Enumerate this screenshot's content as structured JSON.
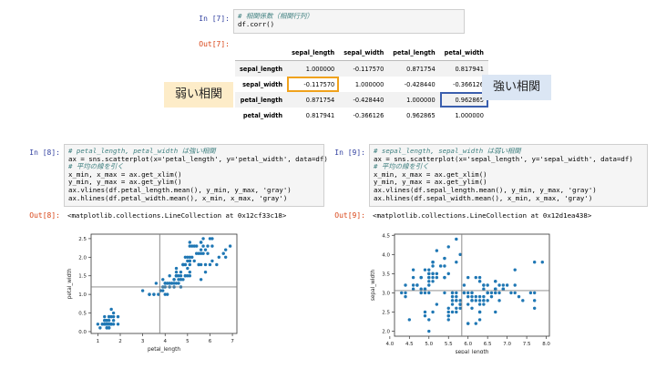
{
  "cell7": {
    "in_prompt": "In [7]:",
    "code_comment": "# 相関係数（相関行列）",
    "code_line": "df.corr()",
    "out_prompt": "Out[7]:"
  },
  "corr_table": {
    "columns": [
      "sepal_length",
      "sepal_width",
      "petal_length",
      "petal_width"
    ],
    "rows": [
      {
        "label": "sepal_length",
        "values": [
          "1.000000",
          "-0.117570",
          "0.871754",
          "0.817941"
        ]
      },
      {
        "label": "sepal_width",
        "values": [
          "-0.117570",
          "1.000000",
          "-0.428440",
          "-0.366126"
        ]
      },
      {
        "label": "petal_length",
        "values": [
          "0.871754",
          "-0.428440",
          "1.000000",
          "0.962865"
        ]
      },
      {
        "label": "petal_width",
        "values": [
          "0.817941",
          "-0.366126",
          "0.962865",
          "1.000000"
        ]
      }
    ]
  },
  "callouts": {
    "weak": "弱い相関",
    "strong": "強い相関",
    "weak_color": "#fdecc8",
    "strong_color": "#dbe6f4"
  },
  "cell8": {
    "in_prompt": "In [8]:",
    "lines": [
      {
        "t": "c",
        "text": "# petal_length, petal_width は強い相関"
      },
      {
        "t": "s",
        "text": "ax = sns.scatterplot(x='petal_length', y='petal_width', data=df)"
      },
      {
        "t": "c",
        "text": "# 平均の線を引く"
      },
      {
        "t": "s",
        "text": "x_min, x_max = ax.get_xlim()"
      },
      {
        "t": "s",
        "text": "y_min, y_max = ax.get_ylim()"
      },
      {
        "t": "s",
        "text": "ax.vlines(df.petal_length.mean(), y_min, y_max, 'gray')"
      },
      {
        "t": "s",
        "text": "ax.hlines(df.petal_width.mean(), x_min, x_max, 'gray')"
      }
    ],
    "out_prompt": "Out[8]:",
    "out_text": "<matplotlib.collections.LineCollection at 0x12cf33c18>"
  },
  "cell9": {
    "in_prompt": "In [9]:",
    "lines": [
      {
        "t": "c",
        "text": "# sepal_length, sepal_width は弱い相関"
      },
      {
        "t": "s",
        "text": "ax = sns.scatterplot(x='sepal_length', y='sepal_width', data=df)"
      },
      {
        "t": "c",
        "text": "# 平均の線を引く"
      },
      {
        "t": "s",
        "text": "x_min, x_max = ax.get_xlim()"
      },
      {
        "t": "s",
        "text": "y_min, y_max = ax.get_ylim()"
      },
      {
        "t": "s",
        "text": "ax.vlines(df.sepal_length.mean(), y_min, y_max, 'gray')"
      },
      {
        "t": "s",
        "text": "ax.hlines(df.sepal_width.mean(), x_min, x_max, 'gray')"
      }
    ],
    "out_prompt": "Out[9]:",
    "out_text": "<matplotlib.collections.LineCollection at 0x12d1ea438>"
  },
  "chart_data": [
    {
      "type": "scatter",
      "xlabel": "petal_length",
      "ylabel": "petal_width",
      "xlim": [
        0.7,
        7.2
      ],
      "ylim": [
        -0.05,
        2.62
      ],
      "xticks": [
        "1",
        "2",
        "3",
        "4",
        "5",
        "6",
        "7"
      ],
      "yticks": [
        "0.0",
        "0.5",
        "1.0",
        "1.5",
        "2.0",
        "2.5"
      ],
      "vline": 3.76,
      "hline": 1.2,
      "point_color": "#1f77b4",
      "points": [
        [
          1.4,
          0.2
        ],
        [
          1.4,
          0.2
        ],
        [
          1.3,
          0.2
        ],
        [
          1.5,
          0.2
        ],
        [
          1.4,
          0.2
        ],
        [
          1.7,
          0.4
        ],
        [
          1.4,
          0.3
        ],
        [
          1.5,
          0.2
        ],
        [
          1.4,
          0.2
        ],
        [
          1.5,
          0.1
        ],
        [
          1.5,
          0.2
        ],
        [
          1.6,
          0.2
        ],
        [
          1.4,
          0.1
        ],
        [
          1.1,
          0.1
        ],
        [
          1.2,
          0.2
        ],
        [
          1.5,
          0.4
        ],
        [
          1.3,
          0.4
        ],
        [
          1.4,
          0.3
        ],
        [
          1.7,
          0.3
        ],
        [
          1.5,
          0.3
        ],
        [
          1.7,
          0.2
        ],
        [
          1.5,
          0.4
        ],
        [
          1.0,
          0.2
        ],
        [
          1.7,
          0.5
        ],
        [
          1.9,
          0.2
        ],
        [
          1.6,
          0.2
        ],
        [
          1.6,
          0.4
        ],
        [
          1.5,
          0.2
        ],
        [
          1.4,
          0.2
        ],
        [
          1.6,
          0.2
        ],
        [
          1.6,
          0.2
        ],
        [
          1.5,
          0.4
        ],
        [
          1.5,
          0.1
        ],
        [
          1.4,
          0.2
        ],
        [
          1.5,
          0.2
        ],
        [
          1.2,
          0.2
        ],
        [
          1.3,
          0.2
        ],
        [
          1.4,
          0.1
        ],
        [
          1.3,
          0.2
        ],
        [
          1.5,
          0.2
        ],
        [
          1.3,
          0.3
        ],
        [
          1.3,
          0.3
        ],
        [
          1.3,
          0.2
        ],
        [
          1.6,
          0.6
        ],
        [
          1.9,
          0.4
        ],
        [
          1.4,
          0.3
        ],
        [
          1.6,
          0.2
        ],
        [
          1.4,
          0.2
        ],
        [
          1.5,
          0.2
        ],
        [
          1.4,
          0.2
        ],
        [
          4.7,
          1.4
        ],
        [
          4.5,
          1.5
        ],
        [
          4.9,
          1.5
        ],
        [
          4.0,
          1.3
        ],
        [
          4.6,
          1.5
        ],
        [
          4.5,
          1.3
        ],
        [
          4.7,
          1.6
        ],
        [
          3.3,
          1.0
        ],
        [
          4.6,
          1.3
        ],
        [
          3.9,
          1.4
        ],
        [
          3.5,
          1.0
        ],
        [
          4.2,
          1.5
        ],
        [
          4.0,
          1.0
        ],
        [
          4.7,
          1.4
        ],
        [
          3.6,
          1.3
        ],
        [
          4.4,
          1.4
        ],
        [
          4.5,
          1.5
        ],
        [
          4.1,
          1.0
        ],
        [
          4.5,
          1.5
        ],
        [
          3.9,
          1.1
        ],
        [
          4.8,
          1.8
        ],
        [
          4.0,
          1.3
        ],
        [
          4.9,
          1.5
        ],
        [
          4.7,
          1.2
        ],
        [
          4.3,
          1.3
        ],
        [
          4.4,
          1.4
        ],
        [
          4.8,
          1.4
        ],
        [
          5.0,
          1.7
        ],
        [
          4.5,
          1.5
        ],
        [
          3.5,
          1.0
        ],
        [
          3.8,
          1.1
        ],
        [
          3.7,
          1.0
        ],
        [
          3.9,
          1.2
        ],
        [
          5.1,
          1.6
        ],
        [
          4.5,
          1.5
        ],
        [
          4.5,
          1.6
        ],
        [
          4.7,
          1.5
        ],
        [
          4.4,
          1.3
        ],
        [
          4.1,
          1.3
        ],
        [
          4.0,
          1.3
        ],
        [
          4.4,
          1.2
        ],
        [
          4.6,
          1.4
        ],
        [
          4.0,
          1.2
        ],
        [
          3.3,
          1.0
        ],
        [
          4.2,
          1.3
        ],
        [
          4.2,
          1.2
        ],
        [
          4.2,
          1.3
        ],
        [
          4.3,
          1.3
        ],
        [
          3.0,
          1.1
        ],
        [
          4.1,
          1.3
        ],
        [
          6.0,
          2.5
        ],
        [
          5.1,
          1.9
        ],
        [
          5.9,
          2.1
        ],
        [
          5.6,
          1.8
        ],
        [
          5.8,
          2.2
        ],
        [
          6.6,
          2.1
        ],
        [
          4.5,
          1.7
        ],
        [
          6.3,
          1.8
        ],
        [
          5.8,
          1.8
        ],
        [
          6.1,
          2.5
        ],
        [
          5.1,
          2.0
        ],
        [
          5.3,
          1.9
        ],
        [
          5.5,
          2.1
        ],
        [
          5.0,
          2.0
        ],
        [
          5.1,
          2.4
        ],
        [
          5.3,
          2.3
        ],
        [
          5.5,
          1.8
        ],
        [
          6.7,
          2.2
        ],
        [
          6.9,
          2.3
        ],
        [
          5.0,
          1.5
        ],
        [
          5.7,
          2.3
        ],
        [
          4.9,
          2.0
        ],
        [
          6.7,
          2.0
        ],
        [
          4.9,
          1.8
        ],
        [
          5.7,
          2.1
        ],
        [
          6.0,
          1.8
        ],
        [
          4.8,
          1.8
        ],
        [
          4.9,
          1.8
        ],
        [
          5.6,
          2.1
        ],
        [
          5.8,
          1.6
        ],
        [
          6.1,
          1.9
        ],
        [
          6.4,
          2.0
        ],
        [
          5.6,
          2.2
        ],
        [
          5.1,
          1.5
        ],
        [
          5.6,
          1.4
        ],
        [
          6.1,
          2.3
        ],
        [
          5.6,
          2.4
        ],
        [
          5.5,
          1.8
        ],
        [
          4.8,
          1.8
        ],
        [
          5.4,
          2.1
        ],
        [
          5.6,
          2.4
        ],
        [
          5.1,
          2.3
        ],
        [
          5.1,
          1.9
        ],
        [
          5.9,
          2.3
        ],
        [
          5.7,
          2.5
        ],
        [
          5.2,
          2.3
        ],
        [
          5.0,
          1.9
        ],
        [
          5.2,
          2.0
        ],
        [
          5.4,
          2.3
        ],
        [
          5.1,
          1.8
        ]
      ]
    },
    {
      "type": "scatter",
      "xlabel": "sepal_length",
      "ylabel": "sepal_width",
      "xlim": [
        4.12,
        8.08
      ],
      "ylim": [
        1.87,
        4.53
      ],
      "xticks": [
        "4.0",
        "4.5",
        "5.0",
        "5.5",
        "6.0",
        "6.5",
        "7.0",
        "7.5",
        "8.0"
      ],
      "yticks": [
        "2.0",
        "2.5",
        "3.0",
        "3.5",
        "4.0",
        "4.5"
      ],
      "vline": 5.84,
      "hline": 3.06,
      "point_color": "#1f77b4",
      "points": [
        [
          5.1,
          3.5
        ],
        [
          4.9,
          3.0
        ],
        [
          4.7,
          3.2
        ],
        [
          4.6,
          3.1
        ],
        [
          5.0,
          3.6
        ],
        [
          5.4,
          3.9
        ],
        [
          4.6,
          3.4
        ],
        [
          5.0,
          3.4
        ],
        [
          4.4,
          2.9
        ],
        [
          4.9,
          3.1
        ],
        [
          5.4,
          3.7
        ],
        [
          4.8,
          3.4
        ],
        [
          4.8,
          3.0
        ],
        [
          4.3,
          3.0
        ],
        [
          5.8,
          4.0
        ],
        [
          5.7,
          4.4
        ],
        [
          5.4,
          3.9
        ],
        [
          5.1,
          3.5
        ],
        [
          5.7,
          3.8
        ],
        [
          5.1,
          3.8
        ],
        [
          5.4,
          3.4
        ],
        [
          5.1,
          3.7
        ],
        [
          4.6,
          3.6
        ],
        [
          5.1,
          3.3
        ],
        [
          4.8,
          3.4
        ],
        [
          5.0,
          3.0
        ],
        [
          5.0,
          3.4
        ],
        [
          5.2,
          3.5
        ],
        [
          5.2,
          3.4
        ],
        [
          4.7,
          3.2
        ],
        [
          4.8,
          3.1
        ],
        [
          5.4,
          3.4
        ],
        [
          5.2,
          4.1
        ],
        [
          5.5,
          4.2
        ],
        [
          4.9,
          3.1
        ],
        [
          5.0,
          3.2
        ],
        [
          5.5,
          3.5
        ],
        [
          4.9,
          3.6
        ],
        [
          4.4,
          3.0
        ],
        [
          5.1,
          3.4
        ],
        [
          5.0,
          3.5
        ],
        [
          4.5,
          2.3
        ],
        [
          4.4,
          3.2
        ],
        [
          5.0,
          3.5
        ],
        [
          5.1,
          3.8
        ],
        [
          4.8,
          3.0
        ],
        [
          5.1,
          3.8
        ],
        [
          4.6,
          3.2
        ],
        [
          5.3,
          3.7
        ],
        [
          5.0,
          3.3
        ],
        [
          7.0,
          3.2
        ],
        [
          6.4,
          3.2
        ],
        [
          6.9,
          3.1
        ],
        [
          5.5,
          2.3
        ],
        [
          6.5,
          2.8
        ],
        [
          5.7,
          2.8
        ],
        [
          6.3,
          3.3
        ],
        [
          4.9,
          2.4
        ],
        [
          6.6,
          2.9
        ],
        [
          5.2,
          2.7
        ],
        [
          5.0,
          2.0
        ],
        [
          5.9,
          3.0
        ],
        [
          6.0,
          2.2
        ],
        [
          6.1,
          2.9
        ],
        [
          5.6,
          2.9
        ],
        [
          6.7,
          3.1
        ],
        [
          5.6,
          3.0
        ],
        [
          5.8,
          2.7
        ],
        [
          6.2,
          2.2
        ],
        [
          5.6,
          2.5
        ],
        [
          5.9,
          3.2
        ],
        [
          6.1,
          2.8
        ],
        [
          6.3,
          2.5
        ],
        [
          6.1,
          2.8
        ],
        [
          6.4,
          2.9
        ],
        [
          6.6,
          3.0
        ],
        [
          6.8,
          2.8
        ],
        [
          6.7,
          3.0
        ],
        [
          6.0,
          2.9
        ],
        [
          5.7,
          2.6
        ],
        [
          5.5,
          2.4
        ],
        [
          5.5,
          2.4
        ],
        [
          5.8,
          2.7
        ],
        [
          6.0,
          2.7
        ],
        [
          5.4,
          3.0
        ],
        [
          6.0,
          3.4
        ],
        [
          6.7,
          3.1
        ],
        [
          6.3,
          2.3
        ],
        [
          5.6,
          3.0
        ],
        [
          5.5,
          2.5
        ],
        [
          5.5,
          2.6
        ],
        [
          6.1,
          3.0
        ],
        [
          5.8,
          2.6
        ],
        [
          5.0,
          2.3
        ],
        [
          5.6,
          2.7
        ],
        [
          5.7,
          3.0
        ],
        [
          5.7,
          2.9
        ],
        [
          6.2,
          2.9
        ],
        [
          5.1,
          2.5
        ],
        [
          5.7,
          2.8
        ],
        [
          6.3,
          3.3
        ],
        [
          5.8,
          2.7
        ],
        [
          7.1,
          3.0
        ],
        [
          6.3,
          2.9
        ],
        [
          6.5,
          3.0
        ],
        [
          7.6,
          3.0
        ],
        [
          4.9,
          2.5
        ],
        [
          7.3,
          2.9
        ],
        [
          6.7,
          2.5
        ],
        [
          7.2,
          3.6
        ],
        [
          6.5,
          3.2
        ],
        [
          6.4,
          2.7
        ],
        [
          6.8,
          3.0
        ],
        [
          5.7,
          2.5
        ],
        [
          5.8,
          2.8
        ],
        [
          6.4,
          3.2
        ],
        [
          6.5,
          3.0
        ],
        [
          7.7,
          3.8
        ],
        [
          7.7,
          2.6
        ],
        [
          6.0,
          2.2
        ],
        [
          6.9,
          3.2
        ],
        [
          5.6,
          2.8
        ],
        [
          7.7,
          2.8
        ],
        [
          6.3,
          2.7
        ],
        [
          6.7,
          3.3
        ],
        [
          7.2,
          3.2
        ],
        [
          6.2,
          2.8
        ],
        [
          6.1,
          3.0
        ],
        [
          6.4,
          2.8
        ],
        [
          7.2,
          3.0
        ],
        [
          7.4,
          2.8
        ],
        [
          7.9,
          3.8
        ],
        [
          6.4,
          2.8
        ],
        [
          6.3,
          2.8
        ],
        [
          6.1,
          2.6
        ],
        [
          7.7,
          3.0
        ],
        [
          6.3,
          3.4
        ],
        [
          6.4,
          3.1
        ],
        [
          6.0,
          3.0
        ],
        [
          6.9,
          3.1
        ],
        [
          6.7,
          3.1
        ],
        [
          6.9,
          3.1
        ],
        [
          5.8,
          2.7
        ],
        [
          6.8,
          3.2
        ],
        [
          6.7,
          3.3
        ],
        [
          6.7,
          3.0
        ],
        [
          6.3,
          2.5
        ],
        [
          6.5,
          3.0
        ],
        [
          6.2,
          3.4
        ],
        [
          5.9,
          3.0
        ]
      ]
    }
  ]
}
